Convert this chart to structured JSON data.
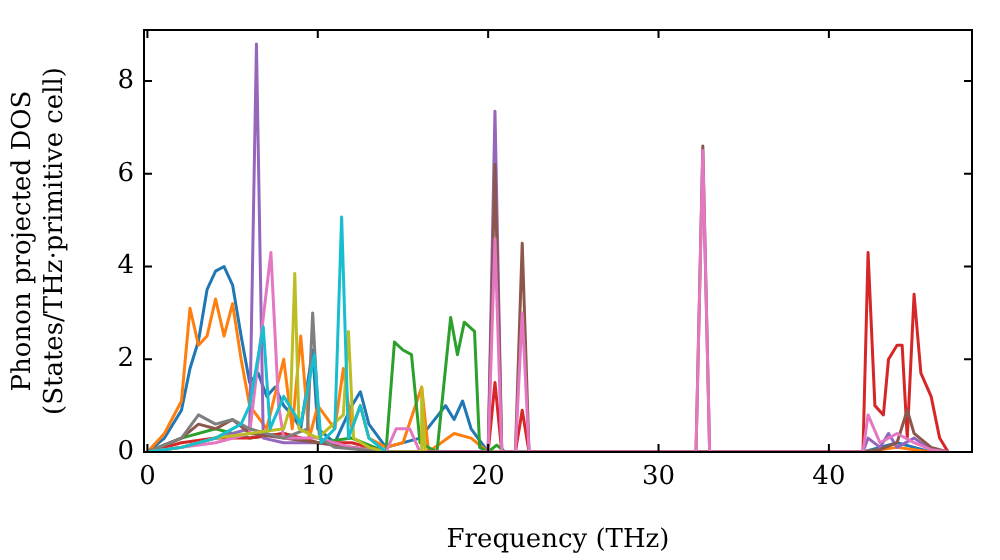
{
  "chart_data": {
    "type": "line",
    "xlabel": "Frequency (THz)",
    "ylabel": "Phonon projected DOS\n(States/THz·primitive cell)",
    "xlim": [
      -0.2,
      48.4
    ],
    "ylim": [
      0,
      9.1
    ],
    "xticks": [
      0,
      10,
      20,
      30,
      40
    ],
    "yticks": [
      0,
      2,
      4,
      6,
      8
    ],
    "grid": false,
    "legend": false,
    "marker": "none",
    "line_style": "solid",
    "series": [
      {
        "color": "#1f77b4",
        "x": [
          0,
          1,
          2,
          2.5,
          3,
          3.5,
          4,
          4.5,
          5,
          5.5,
          6,
          6.5,
          7,
          7.5,
          8,
          8.5,
          9,
          9.7,
          10,
          11,
          12,
          12.5,
          13,
          14,
          16,
          17.5,
          18,
          18.5,
          19,
          20,
          42,
          43,
          44,
          45,
          46
        ],
        "values": [
          0,
          0.3,
          0.9,
          1.8,
          2.4,
          3.5,
          3.9,
          4.0,
          3.6,
          2.5,
          1.5,
          1.7,
          1.2,
          1.4,
          1.0,
          0.8,
          0.5,
          2.2,
          0.5,
          0.2,
          1.0,
          1.3,
          0.6,
          0.1,
          0.3,
          1.0,
          0.7,
          1.1,
          0.5,
          0,
          0,
          0.1,
          0.2,
          0.1,
          0
        ]
      },
      {
        "color": "#ff7f0e",
        "x": [
          0,
          1,
          2,
          2.5,
          3,
          3.5,
          4,
          4.5,
          5,
          5.5,
          6,
          7,
          8,
          8.5,
          9,
          9.5,
          10,
          11,
          11.5,
          12,
          12.5,
          13,
          14,
          15,
          16.1,
          16.5,
          18,
          19,
          20,
          30,
          42,
          43,
          44,
          45,
          46
        ],
        "values": [
          0,
          0.4,
          1.1,
          3.1,
          2.3,
          2.5,
          3.3,
          2.5,
          3.2,
          2.0,
          1.0,
          0.5,
          2.0,
          0.5,
          2.5,
          0.3,
          1.0,
          0.5,
          1.8,
          0.5,
          1.0,
          0.3,
          0.1,
          0.2,
          1.4,
          0,
          0.4,
          0.3,
          0,
          0,
          0,
          0.05,
          0.1,
          0.05,
          0
        ]
      },
      {
        "color": "#2ca02c",
        "x": [
          0,
          2,
          4,
          6,
          8,
          10,
          12,
          14,
          14.5,
          15,
          15.5,
          16,
          17,
          17.8,
          18.2,
          18.6,
          19.2,
          19.5,
          20,
          20.5,
          21
        ],
        "values": [
          0,
          0.3,
          0.5,
          0.3,
          0.4,
          0.2,
          0.3,
          0,
          2.37,
          2.2,
          2.1,
          0.2,
          0,
          2.9,
          2.1,
          2.8,
          2.6,
          0.1,
          0,
          0.15,
          0
        ]
      },
      {
        "color": "#d62728",
        "x": [
          0,
          2,
          4,
          6,
          8,
          10,
          12,
          14,
          20,
          20.4,
          20.8,
          21.6,
          22,
          22.4,
          30,
          42,
          42.3,
          42.7,
          43.2,
          43.5,
          44,
          44.3,
          44.6,
          45,
          45.4,
          46,
          46.5,
          47
        ],
        "values": [
          0,
          0.2,
          0.3,
          0.3,
          0.4,
          0.2,
          0.2,
          0,
          0,
          1.5,
          0,
          0,
          0.9,
          0,
          0,
          0,
          4.3,
          1.0,
          0.8,
          2.0,
          2.3,
          2.3,
          0.3,
          3.4,
          1.7,
          1.2,
          0.3,
          0
        ]
      },
      {
        "color": "#9467bd",
        "x": [
          0,
          2,
          4,
          6,
          6.4,
          6.8,
          8,
          10,
          12,
          14,
          20,
          20.4,
          20.8,
          22,
          30,
          42,
          42.3,
          43,
          43.5,
          44,
          45,
          46,
          47
        ],
        "values": [
          0,
          0.1,
          0.3,
          0.5,
          8.8,
          0.3,
          0.2,
          0.2,
          0.1,
          0,
          0,
          7.35,
          0,
          0,
          0,
          0,
          0.3,
          0.1,
          0.4,
          0.1,
          0.3,
          0.05,
          0
        ]
      },
      {
        "color": "#8c564b",
        "x": [
          0,
          2,
          3,
          4,
          5,
          6,
          8,
          10,
          14,
          20,
          20.4,
          20.8,
          21.6,
          22,
          22.4,
          32.2,
          32.6,
          33,
          42,
          43,
          44,
          44.6,
          45,
          46,
          47
        ],
        "values": [
          0,
          0.3,
          0.6,
          0.5,
          0.7,
          0.4,
          0.3,
          0.2,
          0,
          0,
          6.2,
          0,
          0,
          4.5,
          0,
          0,
          6.6,
          0,
          0,
          0.05,
          0.2,
          0.9,
          0.4,
          0.1,
          0
        ]
      },
      {
        "color": "#e377c2",
        "x": [
          0,
          2,
          4,
          6,
          7.25,
          7.7,
          8,
          10,
          12,
          14,
          14.6,
          15.4,
          16,
          20,
          20.4,
          20.8,
          21.6,
          22,
          22.4,
          32.2,
          32.6,
          33,
          42,
          42.3,
          43,
          44,
          45,
          46,
          47
        ],
        "values": [
          0,
          0.1,
          0.2,
          0.4,
          4.3,
          1.0,
          0.3,
          0.3,
          0.1,
          0,
          0.5,
          0.5,
          0,
          0,
          4.6,
          0,
          0,
          3.0,
          0,
          0,
          6.5,
          0,
          0,
          0.8,
          0.2,
          0.4,
          0.2,
          0.05,
          0
        ]
      },
      {
        "color": "#7f7f7f",
        "x": [
          0,
          2,
          3,
          4,
          5,
          6,
          8,
          9.4,
          9.7,
          10.1,
          11,
          14
        ],
        "values": [
          0,
          0.3,
          0.8,
          0.6,
          0.7,
          0.5,
          0.3,
          0.5,
          3.0,
          0.3,
          0.1,
          0
        ]
      },
      {
        "color": "#bcbd22",
        "x": [
          0,
          2,
          4,
          6,
          8,
          8.4,
          8.65,
          8.9,
          10,
          11.5,
          11.8,
          12.1,
          13,
          14,
          16,
          16.1,
          16.3
        ],
        "values": [
          0,
          0.1,
          0.3,
          0.4,
          0.5,
          1.0,
          3.85,
          0.5,
          0.3,
          0.8,
          2.6,
          0.3,
          0.1,
          0,
          0,
          1.4,
          0
        ]
      },
      {
        "color": "#17becf",
        "x": [
          0,
          2,
          4,
          5.5,
          6,
          6.8,
          7.2,
          8,
          9,
          9.8,
          10.2,
          11,
          11.4,
          11.8,
          12.5,
          13,
          14
        ],
        "values": [
          0,
          0.1,
          0.3,
          0.6,
          1.0,
          2.7,
          0.5,
          1.2,
          0.6,
          2.1,
          0.2,
          0.5,
          5.07,
          0.3,
          1.0,
          0.3,
          0
        ]
      }
    ]
  }
}
